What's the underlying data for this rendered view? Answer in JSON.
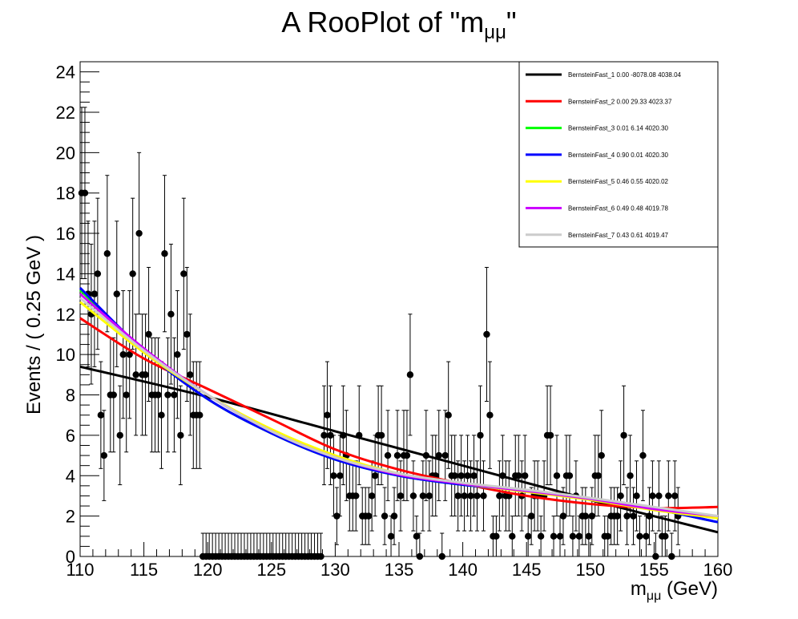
{
  "chart_data": {
    "type": "scatter",
    "title_main": "A RooPlot of \"m",
    "title_sub": "μμ",
    "title_end": "\"",
    "xlabel_main": "m",
    "xlabel_sub": "μμ",
    "xlabel_unit": " (GeV)",
    "ylabel": "Events / ( 0.25 GeV )",
    "xlim": [
      110,
      160
    ],
    "ylim": [
      0,
      24.5
    ],
    "xticks": [
      110,
      115,
      120,
      125,
      130,
      135,
      140,
      145,
      150,
      155,
      160
    ],
    "yticks": [
      0,
      2,
      4,
      6,
      8,
      10,
      12,
      14,
      16,
      18,
      20,
      22,
      24
    ],
    "grid": false,
    "legend_position": "top-right",
    "data_points": {
      "x_start": 110.125,
      "bin_width": 0.25,
      "counts": [
        18,
        18,
        13,
        12,
        13,
        14,
        7,
        5,
        15,
        8,
        8,
        13,
        6,
        10,
        8,
        10,
        14,
        9,
        16,
        9,
        9,
        11,
        8,
        8,
        8,
        7,
        15,
        8,
        12,
        8,
        10,
        6,
        14,
        11,
        9,
        7,
        7,
        7,
        0,
        0,
        0,
        0,
        0,
        0,
        0,
        0,
        0,
        0,
        0,
        0,
        0,
        0,
        0,
        0,
        0,
        0,
        0,
        0,
        0,
        0,
        0,
        0,
        0,
        0,
        0,
        0,
        0,
        0,
        0,
        0,
        0,
        0,
        0,
        0,
        0,
        0,
        6,
        7,
        6,
        4,
        2,
        4,
        6,
        5,
        3,
        3,
        3,
        6,
        2,
        2,
        2,
        3,
        4,
        6,
        6,
        2,
        5,
        1,
        2,
        5,
        3,
        5,
        5,
        9,
        3,
        1,
        0,
        3,
        5,
        3,
        4,
        4,
        5,
        0,
        5,
        7,
        4,
        4,
        3,
        4,
        3,
        4,
        3,
        4,
        3,
        6,
        3,
        11,
        7,
        1,
        1,
        3,
        4,
        3,
        3,
        1,
        4,
        4,
        3,
        4,
        1,
        2,
        3,
        3,
        1,
        3,
        6,
        6,
        1,
        4,
        1,
        2,
        4,
        4,
        1,
        3,
        1,
        2,
        2,
        1,
        2,
        4,
        4,
        5,
        1,
        1,
        2,
        2,
        2,
        3,
        6,
        2,
        4,
        2,
        3,
        1,
        5,
        1,
        2,
        3,
        0,
        3,
        1,
        1,
        3,
        0,
        3,
        2
      ],
      "blinded_range": [
        120,
        130
      ]
    },
    "series": [
      {
        "name": "BernsteinFast_1",
        "stats": "0.00 -8078.08 4038.04",
        "color": "#000000",
        "x": [
          110,
          120,
          130,
          140,
          150,
          160
        ],
        "y": [
          9.4,
          7.9,
          6.2,
          4.5,
          2.8,
          1.2
        ]
      },
      {
        "name": "BernsteinFast_2",
        "stats": "0.00 29.33 4023.37",
        "color": "#ff0000",
        "x": [
          110,
          115,
          120,
          125,
          130,
          135,
          140,
          145,
          150,
          155,
          160
        ],
        "y": [
          11.8,
          9.8,
          8.3,
          6.8,
          5.3,
          4.3,
          3.6,
          3.0,
          2.6,
          2.4,
          2.45
        ]
      },
      {
        "name": "BernsteinFast_3",
        "stats": "0.01 6.14 4020.30",
        "color": "#00ff00",
        "x": [
          110,
          115,
          120,
          125,
          130,
          135,
          140,
          145,
          150,
          155,
          160
        ],
        "y": [
          13.2,
          10.2,
          7.8,
          6.1,
          4.8,
          4.0,
          3.55,
          3.25,
          2.85,
          2.35,
          1.7
        ]
      },
      {
        "name": "BernsteinFast_4",
        "stats": "0.90 0.01 4020.30",
        "color": "#0000ff",
        "x": [
          110,
          115,
          120,
          125,
          130,
          135,
          140,
          145,
          150,
          155,
          160
        ],
        "y": [
          13.3,
          10.2,
          7.8,
          6.1,
          4.8,
          4.0,
          3.55,
          3.25,
          2.85,
          2.35,
          1.7
        ]
      },
      {
        "name": "BernsteinFast_5",
        "stats": "0.46 0.55 4020.02",
        "color": "#ffff00",
        "x": [
          110,
          115,
          120,
          125,
          130,
          135,
          140,
          145,
          150,
          155,
          160
        ],
        "y": [
          12.6,
          10.1,
          8.0,
          6.3,
          5.0,
          4.1,
          3.6,
          3.2,
          2.8,
          2.3,
          1.9
        ]
      },
      {
        "name": "BernsteinFast_6",
        "stats": "0.49 0.48 4019.78",
        "color": "#cc00ff",
        "x": [
          110,
          115,
          120,
          125,
          130,
          135,
          140,
          145,
          150,
          155,
          160
        ],
        "y": [
          13.0,
          10.3,
          8.0,
          6.2,
          4.9,
          4.05,
          3.6,
          3.25,
          2.85,
          2.35,
          2.0
        ]
      },
      {
        "name": "BernsteinFast_7",
        "stats": "0.43 0.61 4019.47",
        "color": "#cccccc",
        "x": [
          110,
          115,
          120,
          125,
          130,
          135,
          140,
          145,
          150,
          155,
          160
        ],
        "y": [
          12.8,
          10.2,
          8.0,
          6.2,
          4.9,
          4.1,
          3.65,
          3.3,
          2.9,
          2.45,
          2.0
        ]
      }
    ]
  }
}
